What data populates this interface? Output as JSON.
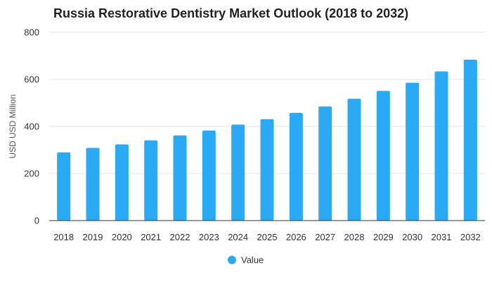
{
  "chart_data": {
    "type": "bar",
    "title": "Russia Restorative Dentistry Market Outlook (2018 to 2032)",
    "xlabel": "",
    "ylabel": "USD USD Million",
    "ylim": [
      0,
      800
    ],
    "yticks": [
      0,
      200,
      400,
      600,
      800
    ],
    "categories": [
      "2018",
      "2019",
      "2020",
      "2021",
      "2022",
      "2023",
      "2024",
      "2025",
      "2026",
      "2027",
      "2028",
      "2029",
      "2030",
      "2031",
      "2032"
    ],
    "series": [
      {
        "name": "Value",
        "color": "#2AAAF4",
        "values": [
          290,
          309,
          324,
          341,
          362,
          383,
          408,
          431,
          458,
          485,
          518,
          551,
          586,
          634,
          684
        ]
      }
    ],
    "legend": {
      "position": "bottom-center",
      "label": "Value"
    },
    "grid": true
  }
}
